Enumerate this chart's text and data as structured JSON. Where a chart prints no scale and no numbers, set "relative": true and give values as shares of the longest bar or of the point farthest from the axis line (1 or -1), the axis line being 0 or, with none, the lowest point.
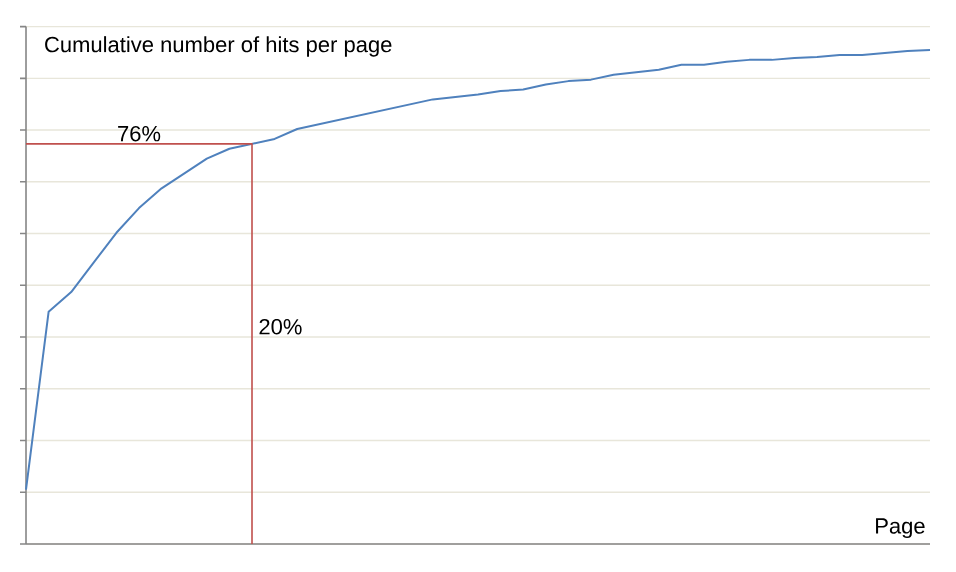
{
  "chart_data": {
    "type": "line",
    "title": "Cumulative number of hits per page",
    "xlabel": "Page",
    "categories": [
      null,
      null,
      null,
      null,
      null,
      null,
      null,
      null,
      null,
      null,
      null,
      null,
      null,
      null,
      null,
      null,
      null,
      null,
      null,
      null,
      null,
      null,
      null,
      null,
      null,
      null,
      null,
      null,
      null,
      null,
      null,
      null,
      null,
      null,
      null,
      null,
      null,
      null,
      null,
      null,
      null
    ],
    "values": [
      0.11,
      0.47,
      0.51,
      0.57,
      0.63,
      0.68,
      0.72,
      0.75,
      0.78,
      0.8,
      0.81,
      0.82,
      0.84,
      0.85,
      0.86,
      0.87,
      0.88,
      0.89,
      0.9,
      0.905,
      0.91,
      0.917,
      0.92,
      0.93,
      0.937,
      0.94,
      0.95,
      0.955,
      0.96,
      0.97,
      0.97,
      0.976,
      0.98,
      0.98,
      0.984,
      0.986,
      0.99,
      0.99,
      0.994,
      0.998,
      1
    ],
    "color": "#4f81bd",
    "relative": true,
    "grid": "y",
    "marker": "none",
    "ref_lines": [
      {
        "axis": "y",
        "value": 0.81,
        "color": "#c0504d"
      }
    ],
    "annotations": [
      "76%",
      "20%"
    ]
  }
}
